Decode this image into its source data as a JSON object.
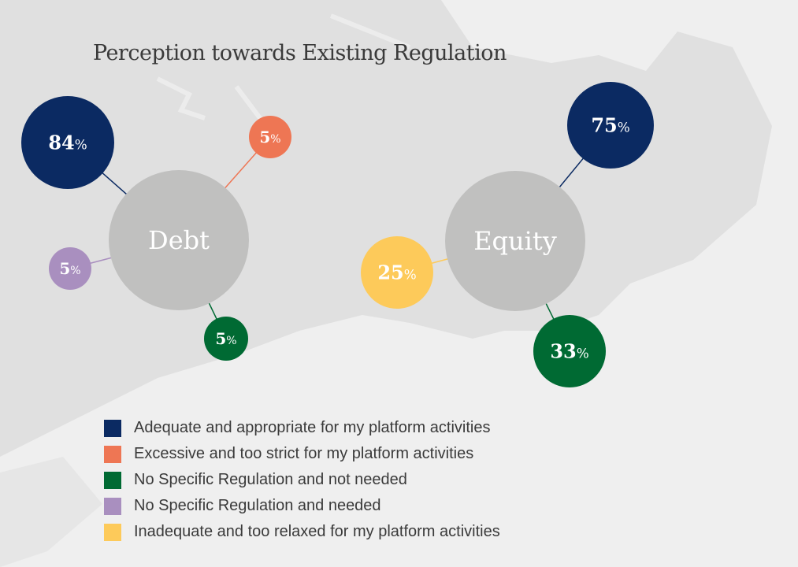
{
  "title": "Perception towards Existing Regulation",
  "chart_data": {
    "type": "bubble-diagram",
    "title": "Perception towards Existing Regulation",
    "categories": [
      {
        "key": "adequate",
        "label": "Adequate and appropriate for my platform activities",
        "color": "#0b2a62"
      },
      {
        "key": "excessive",
        "label": "Excessive and too strict for my platform activities",
        "color": "#ee7654"
      },
      {
        "key": "not_needed",
        "label": "No Specific Regulation and not needed",
        "color": "#006a33"
      },
      {
        "key": "needed",
        "label": "No Specific Regulation and needed",
        "color": "#a98fbf"
      },
      {
        "key": "inadequate",
        "label": "Inadequate and too relaxed for my platform activities",
        "color": "#fdca5a"
      }
    ],
    "groups": [
      {
        "label": "Debt",
        "values": {
          "adequate": 84,
          "excessive": 5,
          "needed": 5,
          "not_needed": 5
        }
      },
      {
        "label": "Equity",
        "values": {
          "adequate": 75,
          "inadequate": 25,
          "not_needed": 33
        }
      }
    ],
    "unit": "%",
    "legend_position": "bottom-left"
  },
  "colors": {
    "background": "#efefef",
    "land": "#e0e0e0",
    "hub": "#c0c0bf"
  }
}
